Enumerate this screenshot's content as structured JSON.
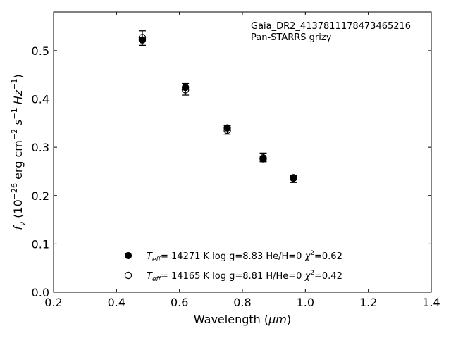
{
  "chart_data": {
    "type": "scatter",
    "annotation": [
      "Gaia_DR2_4137811178473465216",
      "Pan-STARRS grizy"
    ],
    "xlabel_text": "Wavelength (",
    "xlabel_unit": "μm",
    "xlabel_close": ")",
    "ylabel_f": "f",
    "ylabel_sub": "ν",
    "ylabel_pre": " (10",
    "ylabel_exp": "−26",
    "ylabel_units": " erg cm",
    "ylabel_exp2": "−2",
    "ylabel_s": " s",
    "ylabel_exp3": "−1",
    "ylabel_hz": " Hz",
    "ylabel_exp4": "−1",
    "ylabel_close": ")",
    "xlim": [
      0.2,
      1.4
    ],
    "ylim": [
      0.0,
      0.58
    ],
    "xticks": [
      0.2,
      0.4,
      0.6,
      0.8,
      1.0,
      1.2,
      1.4
    ],
    "yticks": [
      0.0,
      0.1,
      0.2,
      0.3,
      0.4,
      0.5
    ],
    "xtick_labels": [
      "0.2",
      "0.4",
      "0.6",
      "0.8",
      "1.0",
      "1.2",
      "1.4"
    ],
    "ytick_labels": [
      "0.0",
      "0.1",
      "0.2",
      "0.3",
      "0.4",
      "0.5"
    ],
    "grid": false,
    "observed": {
      "x": [
        0.482,
        0.619,
        0.752,
        0.866,
        0.962
      ],
      "y": [
        0.526,
        0.42,
        0.336,
        0.279,
        0.234
      ],
      "yerr": [
        0.015,
        0.012,
        0.009,
        0.009,
        0.007
      ]
    },
    "series": [
      {
        "name": "T_eff= 14271 K  log g=8.83  He/H=0  χ²=0.62",
        "name_parts": {
          "T": "T",
          "sub": "eff",
          "rest": "= 14271 K  log g=8.83  He/H=0  ",
          "chi": "χ",
          "sup": "2",
          "end": "=0.62"
        },
        "marker": "filled",
        "color": "#000000",
        "x": [
          0.482,
          0.619,
          0.752,
          0.866,
          0.962
        ],
        "y": [
          0.522,
          0.424,
          0.34,
          0.276,
          0.236
        ]
      },
      {
        "name": "T_eff= 14165 K  log g=8.81  H/He=0  χ²=0.42",
        "name_parts": {
          "T": "T",
          "sub": "eff",
          "rest": "= 14165 K  log g=8.81  H/He=0  ",
          "chi": "χ",
          "sup": "2",
          "end": "=0.42"
        },
        "marker": "open",
        "color": "#000000",
        "x": [
          0.482,
          0.619,
          0.752,
          0.866,
          0.962
        ],
        "y": [
          0.527,
          0.419,
          0.335,
          0.278,
          0.237
        ]
      }
    ],
    "legend_position": "lower-center"
  }
}
